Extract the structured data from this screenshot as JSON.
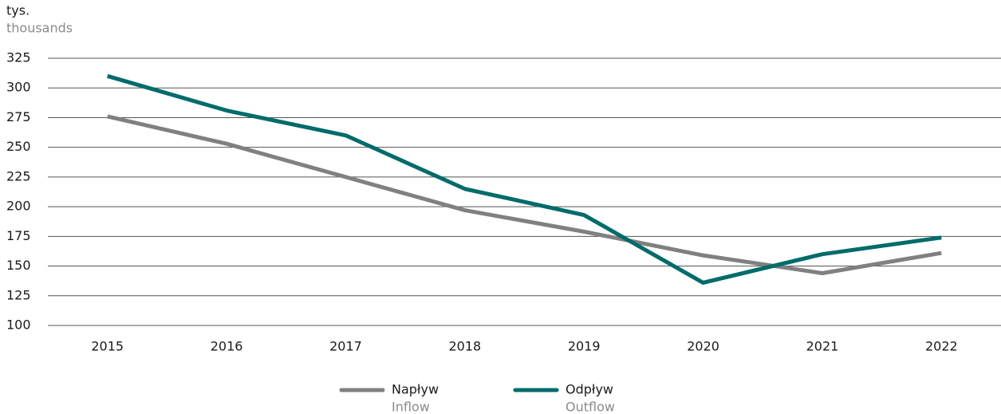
{
  "chart_data": {
    "type": "line",
    "y_label": "tys.",
    "y_label_en": "thousands",
    "categories": [
      "2015",
      "2016",
      "2017",
      "2018",
      "2019",
      "2020",
      "2021",
      "2022"
    ],
    "series": [
      {
        "name": "Napływ",
        "name_en": "Inflow",
        "color": "#808080",
        "values": [
          276,
          253,
          225,
          197,
          179,
          159,
          144,
          161
        ]
      },
      {
        "name": "Odpływ",
        "name_en": "Outflow",
        "color": "#006b6b",
        "values": [
          310,
          281,
          260,
          215,
          193,
          136,
          160,
          174
        ]
      }
    ],
    "ylim": [
      100,
      325
    ],
    "yticks": [
      100,
      125,
      150,
      175,
      200,
      225,
      250,
      275,
      300,
      325
    ],
    "grid": true
  }
}
